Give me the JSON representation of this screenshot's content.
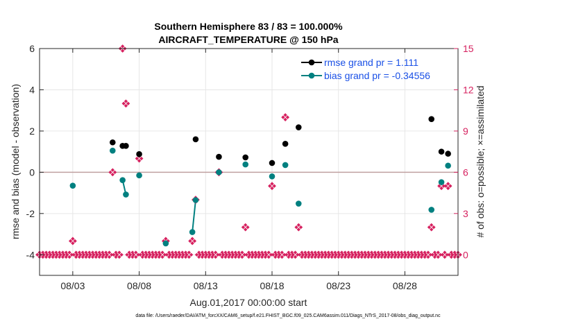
{
  "chart_data": {
    "type": "scatter",
    "title_line1": "Southern Hemisphere 83 / 83 = 100.000%",
    "title_line2": "AIRCRAFT_TEMPERATURE @ 150 hPa",
    "xlabel": "Aug.01,2017 00:00:00 start",
    "ylabel_left": "rmse and bias (model - observation)",
    "ylabel_right": "# of obs: o=possible; ×=assimilated",
    "xlim": [
      0.5,
      32.0
    ],
    "ylim_left": [
      -5,
      6
    ],
    "ylim_right": [
      -1.5,
      15
    ],
    "x_ticks": [
      {
        "value": 3,
        "label": "08/03"
      },
      {
        "value": 8,
        "label": "08/08"
      },
      {
        "value": 13,
        "label": "08/13"
      },
      {
        "value": 18,
        "label": "08/18"
      },
      {
        "value": 23,
        "label": "08/23"
      },
      {
        "value": 28,
        "label": "08/28"
      }
    ],
    "y_ticks_left": [
      {
        "value": -4,
        "label": "-4"
      },
      {
        "value": -2,
        "label": "-2"
      },
      {
        "value": 0,
        "label": "0"
      },
      {
        "value": 2,
        "label": "2"
      },
      {
        "value": 4,
        "label": "4"
      },
      {
        "value": 6,
        "label": "6"
      }
    ],
    "y_ticks_right": [
      {
        "value": 0,
        "label": "0"
      },
      {
        "value": 3,
        "label": "3"
      },
      {
        "value": 6,
        "label": "6"
      },
      {
        "value": 9,
        "label": "9"
      },
      {
        "value": 12,
        "label": "12"
      },
      {
        "value": 15,
        "label": "15"
      }
    ],
    "series": [
      {
        "name": "rmse",
        "legend": "rmse grand pr = 1.111",
        "color": "#000000",
        "points": [
          {
            "x": 6.0,
            "y": 1.45
          },
          {
            "x": 6.75,
            "y": 1.28
          },
          {
            "x": 7.0,
            "y": 1.28
          },
          {
            "x": 8.0,
            "y": 0.88
          },
          {
            "x": 12.25,
            "y": 1.6
          },
          {
            "x": 14.0,
            "y": 0.75
          },
          {
            "x": 16.0,
            "y": 0.72
          },
          {
            "x": 18.0,
            "y": 0.45
          },
          {
            "x": 19.0,
            "y": 1.38
          },
          {
            "x": 20.0,
            "y": 2.18
          },
          {
            "x": 30.0,
            "y": 2.58
          },
          {
            "x": 30.75,
            "y": 1.0
          },
          {
            "x": 31.25,
            "y": 0.9
          }
        ],
        "segments": [
          [
            1,
            2
          ]
        ]
      },
      {
        "name": "bias",
        "legend": "bias grand pr = -0.34556",
        "color": "#008080",
        "points": [
          {
            "x": 3.0,
            "y": -0.65
          },
          {
            "x": 6.0,
            "y": 1.05
          },
          {
            "x": 6.75,
            "y": -0.38
          },
          {
            "x": 7.0,
            "y": -1.08
          },
          {
            "x": 8.0,
            "y": -0.15
          },
          {
            "x": 10.0,
            "y": -3.45
          },
          {
            "x": 12.0,
            "y": -2.9
          },
          {
            "x": 12.25,
            "y": -1.35
          },
          {
            "x": 14.0,
            "y": 0.0
          },
          {
            "x": 16.0,
            "y": 0.38
          },
          {
            "x": 18.0,
            "y": -0.2
          },
          {
            "x": 19.0,
            "y": 0.35
          },
          {
            "x": 20.0,
            "y": -1.52
          },
          {
            "x": 30.0,
            "y": -1.82
          },
          {
            "x": 30.75,
            "y": -0.48
          },
          {
            "x": 31.25,
            "y": 0.32
          }
        ],
        "segments": [
          [
            2,
            3
          ],
          [
            6,
            7
          ]
        ]
      }
    ],
    "obs_counts": {
      "color": "#d6215f",
      "points": [
        {
          "x": 3.0,
          "y": 1
        },
        {
          "x": 6.0,
          "y": 6
        },
        {
          "x": 6.75,
          "y": 15
        },
        {
          "x": 7.0,
          "y": 11
        },
        {
          "x": 8.0,
          "y": 7
        },
        {
          "x": 10.0,
          "y": 1
        },
        {
          "x": 12.0,
          "y": 1
        },
        {
          "x": 12.25,
          "y": 4
        },
        {
          "x": 14.0,
          "y": 6
        },
        {
          "x": 16.0,
          "y": 2
        },
        {
          "x": 18.0,
          "y": 5
        },
        {
          "x": 19.0,
          "y": 10
        },
        {
          "x": 20.0,
          "y": 2
        },
        {
          "x": 30.0,
          "y": 2
        },
        {
          "x": 30.75,
          "y": 5
        },
        {
          "x": 31.25,
          "y": 5
        }
      ],
      "zero_step": 0.25,
      "zero_range": [
        0.5,
        32.0
      ]
    },
    "reference_line_y": 0,
    "footnote": "data file: /Users/raeder/DAI/ATM_forcXX/CAM6_setup/f.e21.FHIST_BGC.f09_025.CAM6assim.011/Diags_NTrS_2017-08/obs_diag_output.nc"
  }
}
